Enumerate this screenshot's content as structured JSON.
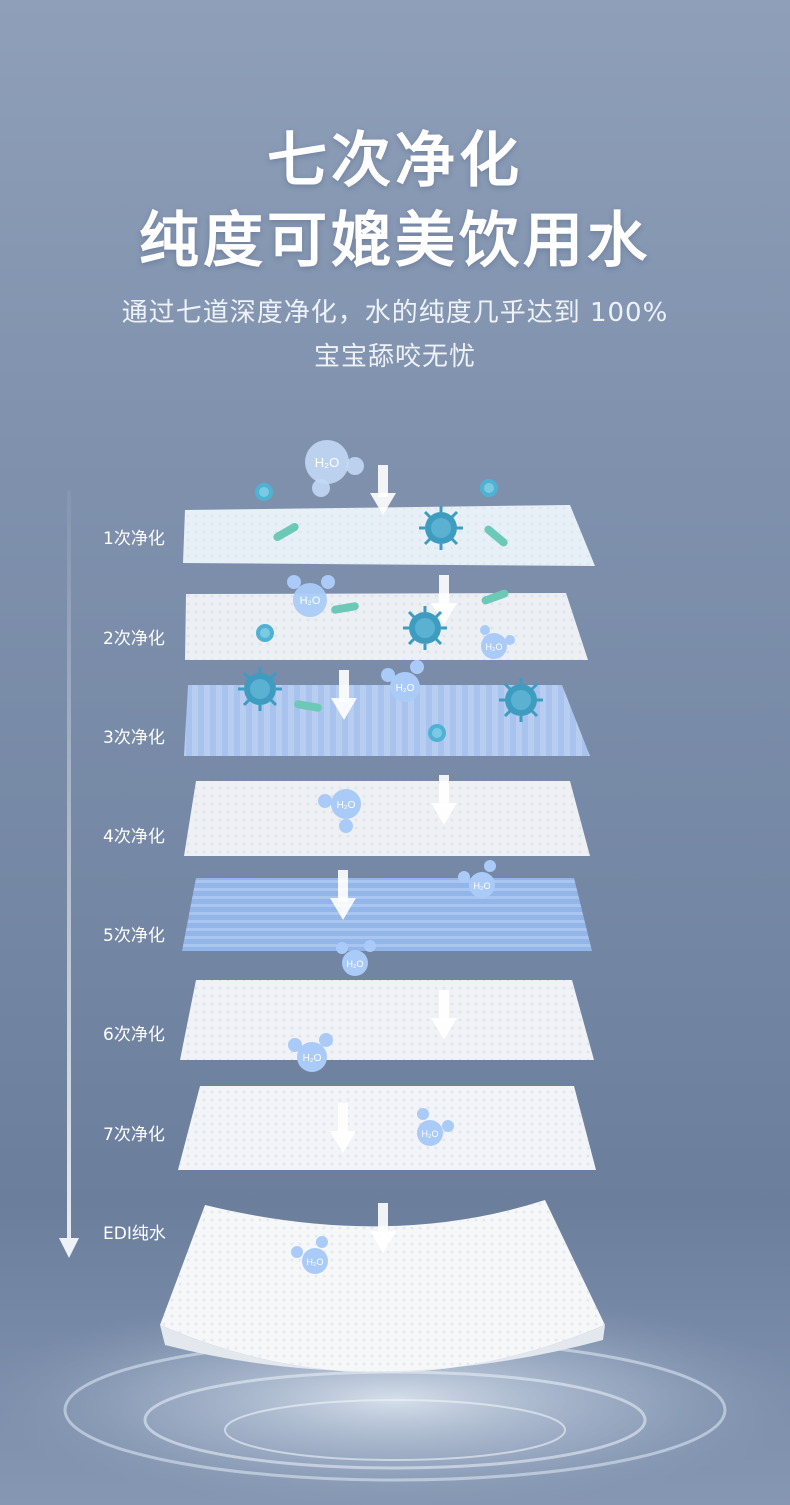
{
  "headline": {
    "line1": "七次净化",
    "line2": "纯度可媲美饮用水"
  },
  "subtitle": {
    "line1": "通过七道深度净化，水的纯度几乎达到 100%",
    "line2": "宝宝舔咬无忧"
  },
  "stages": [
    {
      "label": "1次净化"
    },
    {
      "label": "2次净化"
    },
    {
      "label": "3次净化"
    },
    {
      "label": "4次净化"
    },
    {
      "label": "5次净化"
    },
    {
      "label": "6次净化"
    },
    {
      "label": "7次净化"
    },
    {
      "label": "EDI纯水"
    }
  ],
  "molecule_label": "H₂O",
  "icons": {
    "down_arrow": "down-arrow-icon",
    "molecule": "water-molecule-icon",
    "virus": "virus-icon",
    "bacteria": "bacteria-icon"
  },
  "colors": {
    "background_top": "#8f9fb9",
    "background_bottom": "#6b7f9d",
    "sheet_white": "#f1f3f7",
    "sheet_blue": "#9dbbe9",
    "virus": "#3d9cc0",
    "bacteria": "#6cc8b7",
    "molecule": "#b9d1f3"
  }
}
